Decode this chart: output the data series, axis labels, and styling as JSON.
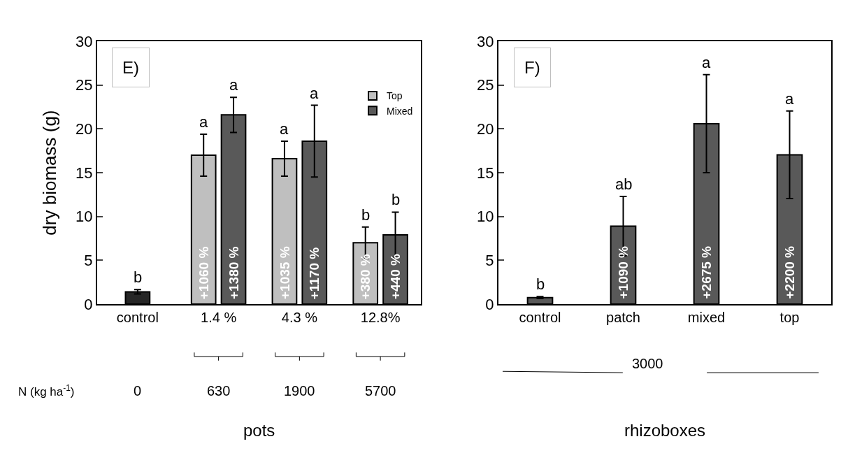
{
  "chart_data": [
    {
      "type": "bar",
      "title": "E)",
      "ylabel": "dry biomass (g)",
      "xlabel": "pots",
      "categories": [
        "control",
        "1.4 %",
        "4.3 %",
        "12.8%"
      ],
      "series": [
        {
          "color": "#262626",
          "values": [
            1.4,
            null,
            null,
            null
          ],
          "errors": [
            0.25,
            null,
            null,
            null
          ]
        },
        {
          "name": "Top",
          "color": "#bfbfbf",
          "values": [
            null,
            17.0,
            16.6,
            7.0
          ],
          "errors": [
            null,
            2.4,
            2.0,
            1.8
          ]
        },
        {
          "name": "Mixed",
          "color": "#595959",
          "values": [
            null,
            21.6,
            18.6,
            7.9
          ],
          "errors": [
            null,
            2.0,
            4.1,
            2.6
          ]
        }
      ],
      "ylim": [
        0,
        30
      ],
      "yticks": [
        0,
        5,
        10,
        15,
        20,
        25,
        30
      ],
      "legend": "top right",
      "annotations": [
        "b",
        "a",
        "a",
        "a",
        "a",
        "b",
        "b",
        "+1060 %",
        "+1380 %",
        "+1035 %",
        "+1170 %",
        "+380 %",
        "+440 %",
        "N (kg ha$^{-1}$)",
        "0",
        "630",
        "1900",
        "5700"
      ]
    },
    {
      "type": "bar",
      "title": "F)",
      "xlabel": "rhizoboxes",
      "categories": [
        "control",
        "patch",
        "mixed",
        "top"
      ],
      "series": [
        {
          "color": "#595959",
          "values": [
            0.75,
            8.9,
            20.6,
            17.05
          ],
          "errors": [
            0.1,
            3.4,
            5.6,
            5.0
          ]
        }
      ],
      "ylim": [
        0,
        30
      ],
      "yticks": [
        0,
        5,
        10,
        15,
        20,
        25,
        30
      ],
      "annotations": [
        "b",
        "ab",
        "a",
        "a",
        "+1090 %",
        "+2675 %",
        "+2200 %",
        "3000"
      ]
    }
  ]
}
